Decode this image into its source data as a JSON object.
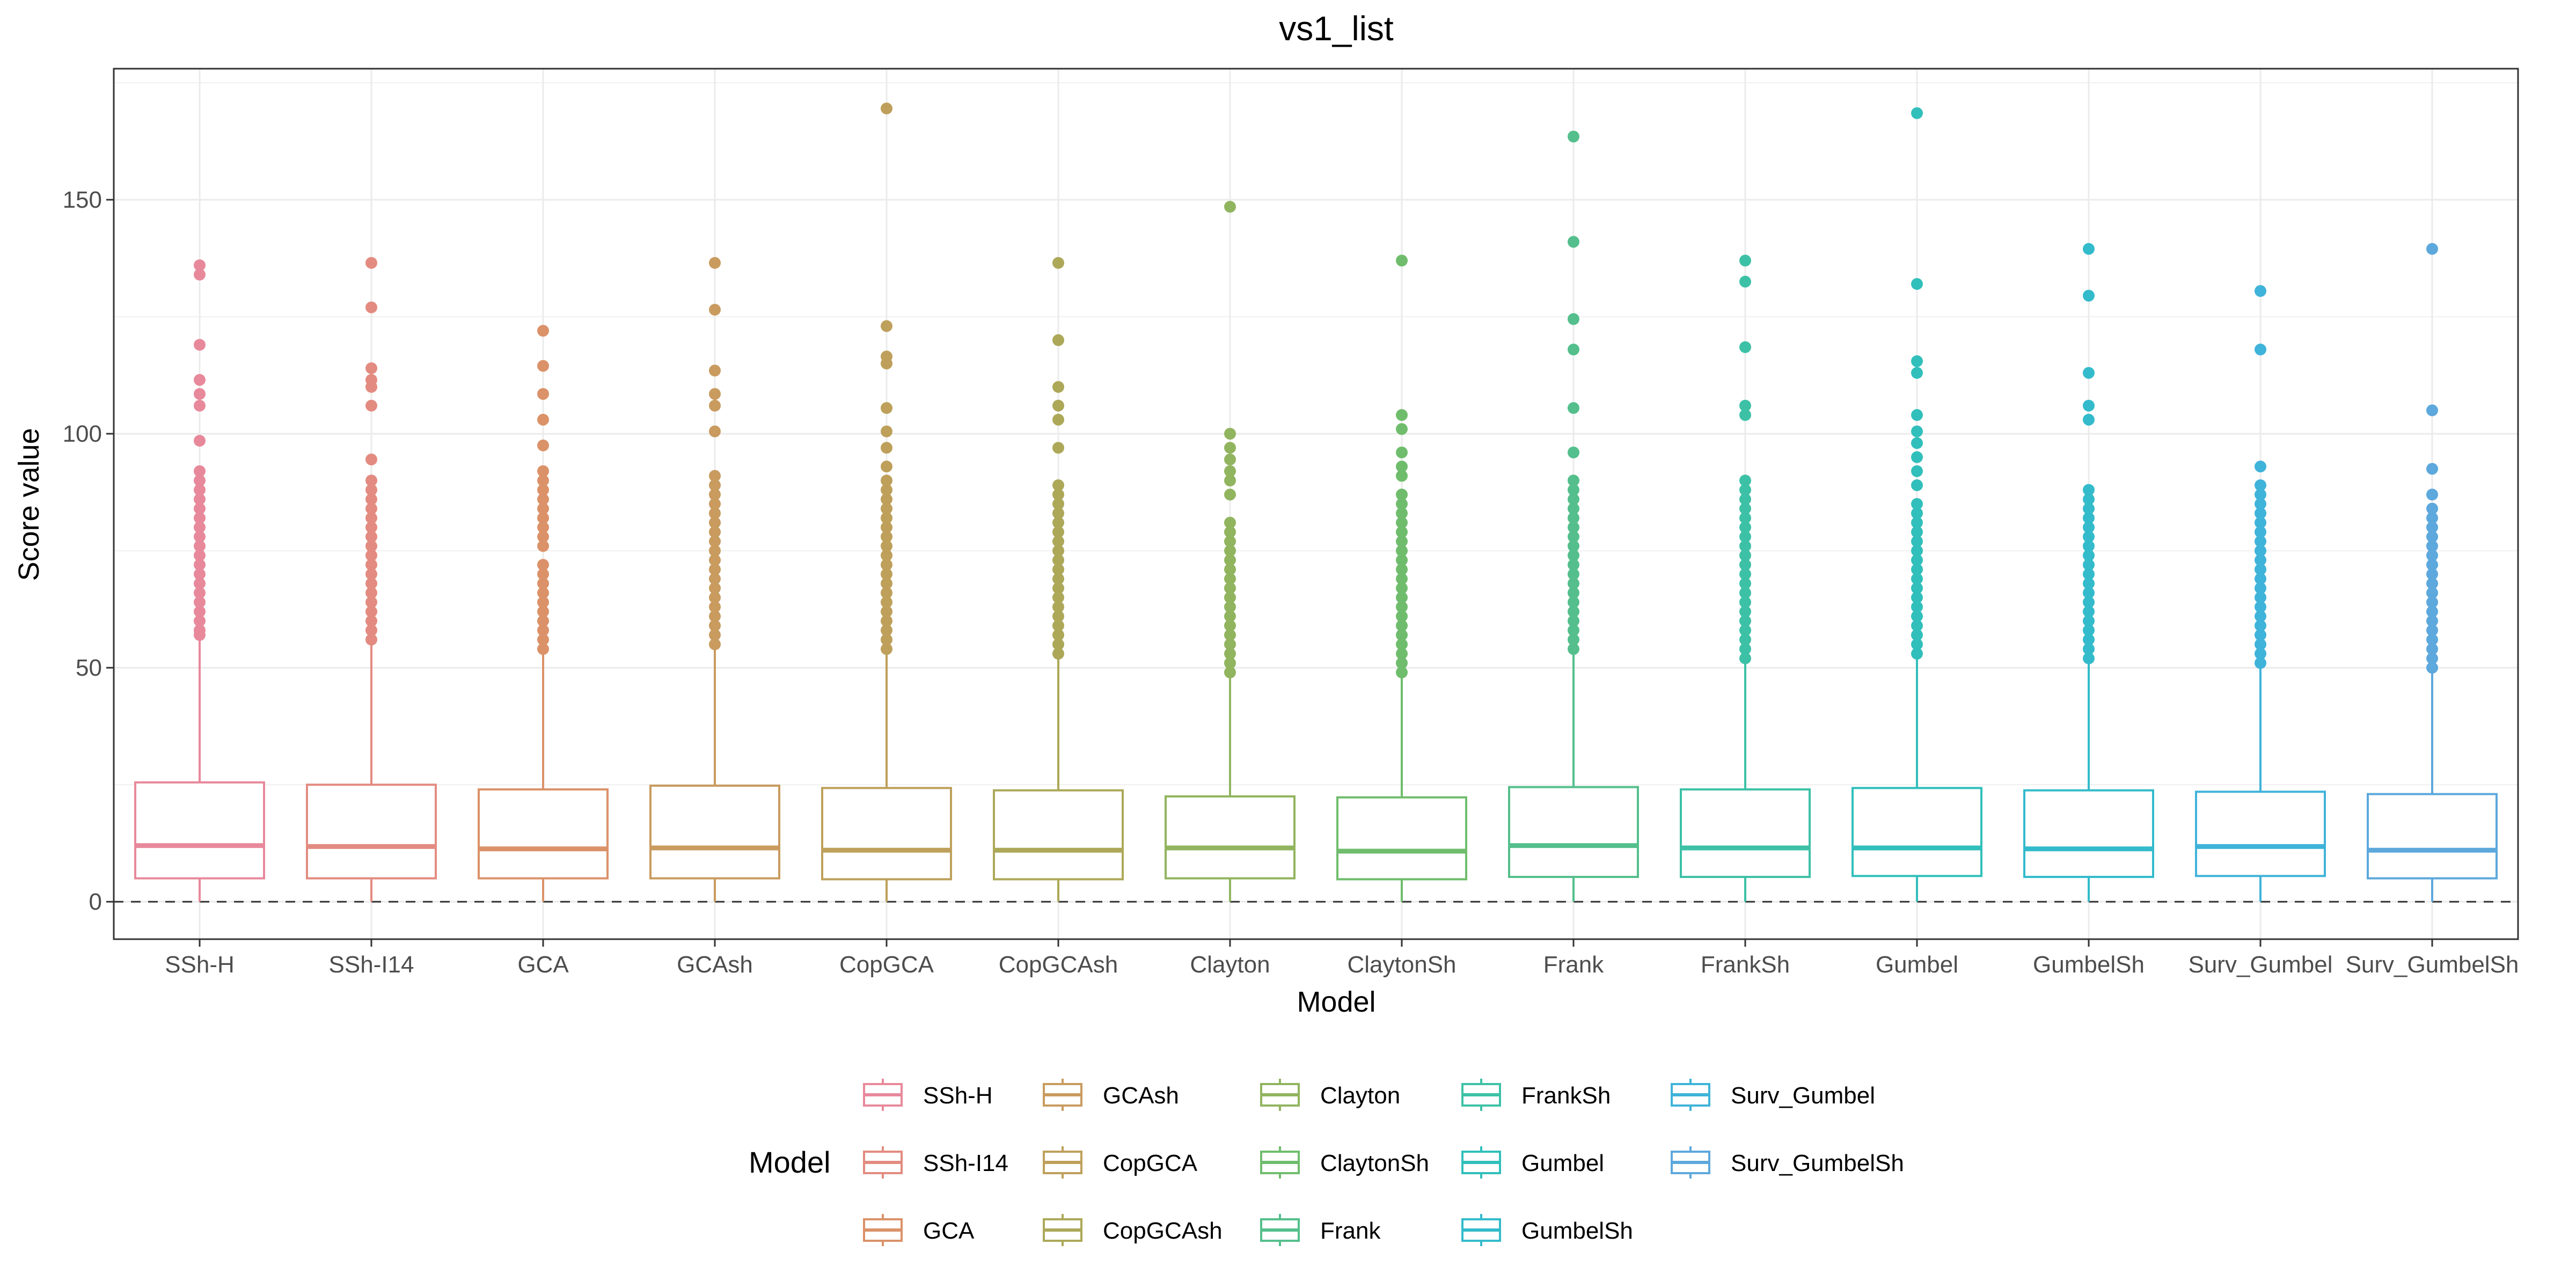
{
  "chart_data": {
    "type": "box",
    "title": "vs1_list",
    "xlabel": "Model",
    "ylabel": "Score value",
    "ylim": [
      -8,
      178
    ],
    "yticks": [
      0,
      50,
      100,
      150
    ],
    "grid": true,
    "reference_line": {
      "y": 0,
      "style": "dashed"
    },
    "legend": {
      "title": "Model",
      "position": "bottom",
      "columns": 5
    },
    "categories": [
      "SSh-H",
      "SSh-I14",
      "GCA",
      "GCAsh",
      "CopGCA",
      "CopGCAsh",
      "Clayton",
      "ClaytonSh",
      "Frank",
      "FrankSh",
      "Gumbel",
      "GumbelSh",
      "Surv_Gumbel",
      "Surv_GumbelSh"
    ],
    "colors": [
      "#E8899B",
      "#E38B80",
      "#DB9269",
      "#C99B5F",
      "#BEA05B",
      "#ACA858",
      "#91B45E",
      "#6FBD6C",
      "#54BF8C",
      "#3DC1A6",
      "#31BFBB",
      "#33BBCB",
      "#3FB3D9",
      "#5DA8DC"
    ],
    "boxes": [
      {
        "model": "SSh-H",
        "min": 0,
        "q1": 5,
        "median": 12,
        "q3": 25.5,
        "whisker_high": 56,
        "outliers": [
          57,
          58,
          60,
          62,
          64,
          66,
          68,
          70,
          72,
          74,
          76,
          78,
          80,
          82,
          84,
          86,
          88,
          90,
          92,
          98.5,
          106,
          108.5,
          111.5,
          119,
          134,
          136
        ]
      },
      {
        "model": "SSh-I14",
        "min": 0,
        "q1": 5,
        "median": 11.8,
        "q3": 25,
        "whisker_high": 55,
        "outliers": [
          56,
          58,
          60,
          62,
          64,
          66,
          68,
          70,
          72,
          74,
          76,
          78,
          80,
          82,
          84,
          86,
          88,
          90,
          94.5,
          106,
          110,
          111.5,
          114,
          127,
          136.5
        ]
      },
      {
        "model": "GCA",
        "min": 0,
        "q1": 5,
        "median": 11.3,
        "q3": 24,
        "whisker_high": 53,
        "outliers": [
          54,
          56,
          58,
          60,
          62,
          64,
          66,
          68,
          70,
          72,
          76,
          78,
          80,
          82,
          84,
          86,
          88,
          90,
          92,
          97.5,
          103,
          108.5,
          114.5,
          122
        ]
      },
      {
        "model": "GCAsh",
        "min": 0,
        "q1": 5,
        "median": 11.5,
        "q3": 24.8,
        "whisker_high": 54,
        "outliers": [
          55,
          57,
          59,
          61,
          63,
          65,
          67,
          69,
          71,
          73,
          75,
          77,
          79,
          81,
          83,
          85,
          87,
          89,
          91,
          100.5,
          106,
          108.5,
          113.5,
          126.5,
          136.5
        ]
      },
      {
        "model": "CopGCA",
        "min": 0,
        "q1": 4.8,
        "median": 11,
        "q3": 24.3,
        "whisker_high": 53,
        "outliers": [
          54,
          56,
          58,
          60,
          62,
          64,
          66,
          68,
          70,
          72,
          74,
          76,
          78,
          80,
          82,
          84,
          86,
          88,
          90,
          93,
          97,
          100.5,
          105.5,
          115,
          116.5,
          123,
          169.5
        ]
      },
      {
        "model": "CopGCAsh",
        "min": 0,
        "q1": 4.8,
        "median": 11,
        "q3": 23.8,
        "whisker_high": 52,
        "outliers": [
          53,
          55,
          57,
          59,
          61,
          63,
          65,
          67,
          69,
          71,
          73,
          75,
          77,
          79,
          81,
          83,
          85,
          87,
          89,
          97,
          103,
          106,
          110,
          120,
          136.5
        ]
      },
      {
        "model": "Clayton",
        "min": 0,
        "q1": 5,
        "median": 11.5,
        "q3": 22.5,
        "whisker_high": 48.5,
        "outliers": [
          49,
          51,
          53,
          55,
          57,
          59,
          61,
          63,
          65,
          67,
          69,
          71,
          73,
          75,
          77,
          79,
          81,
          87,
          90,
          92,
          94.5,
          97,
          100,
          148.5
        ]
      },
      {
        "model": "ClaytonSh",
        "min": 0,
        "q1": 4.8,
        "median": 10.8,
        "q3": 22.3,
        "whisker_high": 48,
        "outliers": [
          49,
          51,
          53,
          55,
          57,
          59,
          61,
          63,
          65,
          67,
          69,
          71,
          73,
          75,
          77,
          79,
          81,
          83,
          85,
          87,
          91,
          93,
          96,
          101,
          104,
          137
        ]
      },
      {
        "model": "Frank",
        "min": 0,
        "q1": 5.3,
        "median": 12,
        "q3": 24.5,
        "whisker_high": 53,
        "outliers": [
          54,
          56,
          58,
          60,
          62,
          64,
          66,
          68,
          70,
          72,
          74,
          76,
          78,
          80,
          82,
          84,
          86,
          88,
          90,
          96,
          105.5,
          118,
          124.5,
          141,
          163.5
        ]
      },
      {
        "model": "FrankSh",
        "min": 0,
        "q1": 5.3,
        "median": 11.5,
        "q3": 24,
        "whisker_high": 51.5,
        "outliers": [
          52,
          54,
          56,
          58,
          60,
          62,
          64,
          66,
          68,
          70,
          72,
          74,
          76,
          78,
          80,
          82,
          84,
          86,
          88,
          90,
          104,
          106,
          118.5,
          132.5,
          137
        ]
      },
      {
        "model": "Gumbel",
        "min": 0,
        "q1": 5.5,
        "median": 11.5,
        "q3": 24.3,
        "whisker_high": 52,
        "outliers": [
          53,
          55,
          57,
          59,
          61,
          63,
          65,
          67,
          69,
          71,
          73,
          75,
          77,
          79,
          81,
          83,
          85,
          89,
          92,
          95,
          98,
          100.5,
          104,
          113,
          115.5,
          132,
          168.5
        ]
      },
      {
        "model": "GumbelSh",
        "min": 0,
        "q1": 5.3,
        "median": 11.3,
        "q3": 23.8,
        "whisker_high": 51.5,
        "outliers": [
          52,
          54,
          56,
          58,
          60,
          62,
          64,
          66,
          68,
          70,
          72,
          74,
          76,
          78,
          80,
          82,
          84,
          86,
          88,
          103,
          106,
          113,
          129.5,
          139.5
        ]
      },
      {
        "model": "Surv_Gumbel",
        "min": 0,
        "q1": 5.5,
        "median": 11.8,
        "q3": 23.5,
        "whisker_high": 50,
        "outliers": [
          51,
          53,
          55,
          57,
          59,
          61,
          63,
          65,
          67,
          69,
          71,
          73,
          75,
          77,
          79,
          81,
          83,
          85,
          87,
          89,
          93,
          118,
          130.5
        ]
      },
      {
        "model": "Surv_GumbelSh",
        "min": 0,
        "q1": 5,
        "median": 11,
        "q3": 23,
        "whisker_high": 49,
        "outliers": [
          50,
          52,
          54,
          56,
          58,
          60,
          62,
          64,
          66,
          68,
          70,
          72,
          74,
          76,
          78,
          80,
          82,
          84,
          87,
          92.5,
          105,
          139.5
        ]
      }
    ]
  }
}
